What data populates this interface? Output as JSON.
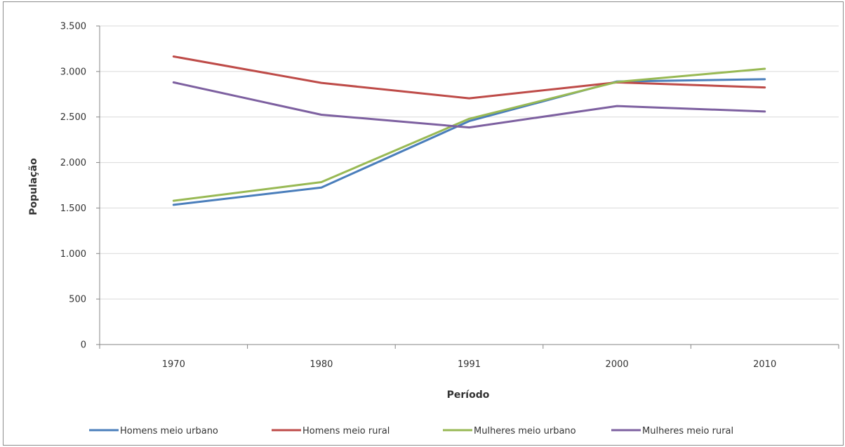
{
  "chart_data": {
    "type": "line",
    "xlabel": "Período",
    "ylabel": "População",
    "categories": [
      "1970",
      "1980",
      "1991",
      "2000",
      "2010"
    ],
    "ylim": [
      0,
      3500
    ],
    "yticks": [
      0,
      500,
      1000,
      1500,
      2000,
      2500,
      3000,
      3500
    ],
    "ytick_labels": [
      "0",
      "500",
      "1.000",
      "1.500",
      "2.000",
      "2.500",
      "3.000",
      "3.500"
    ],
    "grid": true,
    "legend_position": "bottom",
    "series": [
      {
        "name": "Homens meio urbano",
        "color": "#4a7ebb",
        "values": [
          1535,
          1725,
          2455,
          2890,
          2915
        ]
      },
      {
        "name": "Homens meio rural",
        "color": "#be4b48",
        "values": [
          3165,
          2875,
          2705,
          2880,
          2825
        ]
      },
      {
        "name": "Mulheres meio urbano",
        "color": "#98b954",
        "values": [
          1580,
          1785,
          2480,
          2885,
          3030
        ]
      },
      {
        "name": "Mulheres meio rural",
        "color": "#7d60a0",
        "values": [
          2880,
          2525,
          2385,
          2620,
          2560
        ]
      }
    ]
  }
}
